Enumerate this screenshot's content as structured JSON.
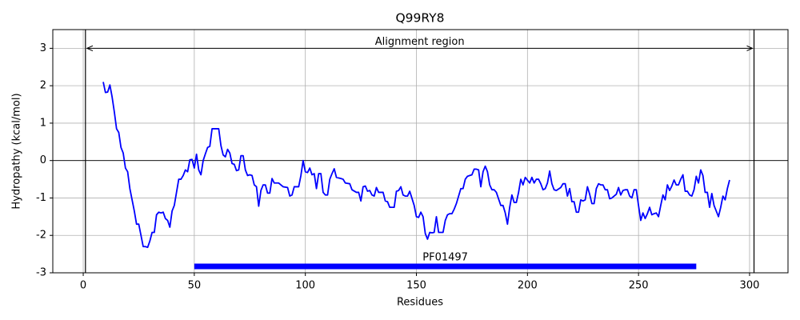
{
  "chart_data": {
    "type": "line",
    "title": "Q99RY8",
    "xlabel": "Residues",
    "ylabel": "Hydropathy (kcal/mol)",
    "x": [
      9,
      10,
      11,
      12,
      13,
      14,
      15,
      16,
      17,
      18,
      19,
      20,
      21,
      22,
      23,
      24,
      25,
      26,
      27,
      28,
      29,
      30,
      31,
      32,
      33,
      34,
      35,
      36,
      37,
      38,
      39,
      40,
      41,
      42,
      43,
      44,
      45,
      46,
      47,
      48,
      49,
      50,
      51,
      52,
      53,
      54,
      55,
      56,
      57,
      58,
      59,
      60,
      61,
      62,
      63,
      64,
      65,
      66,
      67,
      68,
      69,
      70,
      71,
      72,
      73,
      74,
      75,
      76,
      77,
      78,
      79,
      80,
      81,
      82,
      83,
      84,
      85,
      86,
      87,
      88,
      90,
      92,
      93,
      94,
      95,
      97,
      98,
      99,
      100,
      101,
      102,
      103,
      104,
      105,
      106,
      107,
      108,
      109,
      110,
      111,
      112,
      113,
      114,
      116,
      117,
      118,
      120,
      121,
      123,
      124,
      125,
      126,
      127,
      128,
      129,
      130,
      131,
      132,
      133,
      135,
      136,
      137,
      138,
      140,
      141,
      142,
      143,
      144,
      145,
      146,
      147,
      149,
      150,
      151,
      152,
      153,
      154,
      155,
      156,
      157,
      158,
      159,
      160,
      162,
      163,
      164,
      165,
      166,
      167,
      168,
      170,
      171,
      172,
      173,
      174,
      175,
      176,
      177,
      178,
      179,
      180,
      181,
      182,
      183,
      184,
      185,
      186,
      188,
      189,
      190,
      191,
      192,
      193,
      194,
      195,
      196,
      197,
      198,
      199,
      201,
      202,
      203,
      204,
      205,
      206,
      207,
      208,
      209,
      210,
      211,
      212,
      213,
      215,
      216,
      217,
      218,
      219,
      220,
      221,
      222,
      223,
      224,
      225,
      226,
      227,
      228,
      229,
      230,
      231,
      232,
      233,
      234,
      235,
      236,
      237,
      238,
      240,
      241,
      242,
      243,
      244,
      245,
      246,
      247,
      248,
      249,
      250,
      251,
      252,
      253,
      254,
      255,
      256,
      257,
      258,
      259,
      260,
      261,
      262,
      263,
      264,
      265,
      266,
      267,
      268,
      269,
      270,
      271,
      272,
      273,
      274,
      275,
      276,
      277,
      278,
      279,
      280,
      281,
      282,
      283,
      284,
      285,
      286,
      287,
      288,
      289,
      290,
      291
    ],
    "series": [
      {
        "name": "Hydropathy",
        "color": "#0000ff",
        "values": [
          2.1,
          1.82,
          1.83,
          2.02,
          1.7,
          1.3,
          0.85,
          0.75,
          0.35,
          0.2,
          -0.2,
          -0.3,
          -0.75,
          -1.05,
          -1.35,
          -1.7,
          -1.7,
          -2.0,
          -2.3,
          -2.3,
          -2.32,
          -2.15,
          -1.92,
          -1.92,
          -1.45,
          -1.38,
          -1.4,
          -1.38,
          -1.55,
          -1.6,
          -1.78,
          -1.35,
          -1.2,
          -0.85,
          -0.5,
          -0.5,
          -0.4,
          -0.25,
          -0.3,
          0.02,
          0.03,
          -0.2,
          0.17,
          -0.25,
          -0.38,
          0,
          0.18,
          0.35,
          0.38,
          0.85,
          0.85,
          0.85,
          0.85,
          0.4,
          0.15,
          0.1,
          0.3,
          0.2,
          -0.08,
          -0.1,
          -0.27,
          -0.25,
          0.13,
          0.13,
          -0.25,
          -0.4,
          -0.38,
          -0.4,
          -0.65,
          -0.7,
          -1.22,
          -0.8,
          -0.65,
          -0.65,
          -0.87,
          -0.87,
          -0.48,
          -0.6,
          -0.6,
          -0.6,
          -0.7,
          -0.72,
          -0.95,
          -0.92,
          -0.7,
          -0.7,
          -0.4,
          0,
          -0.3,
          -0.32,
          -0.2,
          -0.38,
          -0.35,
          -0.75,
          -0.35,
          -0.35,
          -0.85,
          -0.92,
          -0.92,
          -0.5,
          -0.35,
          -0.22,
          -0.45,
          -0.48,
          -0.5,
          -0.6,
          -0.62,
          -0.78,
          -0.85,
          -0.85,
          -1.08,
          -0.7,
          -0.68,
          -0.82,
          -0.8,
          -0.92,
          -0.95,
          -0.72,
          -0.85,
          -0.85,
          -1.08,
          -1.1,
          -1.25,
          -1.25,
          -0.82,
          -0.8,
          -0.7,
          -0.92,
          -0.95,
          -0.95,
          -0.82,
          -1.2,
          -1.5,
          -1.52,
          -1.38,
          -1.5,
          -1.95,
          -2.1,
          -1.92,
          -1.93,
          -1.92,
          -1.5,
          -1.92,
          -1.92,
          -1.6,
          -1.45,
          -1.42,
          -1.42,
          -1.3,
          -1.15,
          -0.75,
          -0.75,
          -0.5,
          -0.42,
          -0.4,
          -0.38,
          -0.23,
          -0.23,
          -0.25,
          -0.7,
          -0.3,
          -0.15,
          -0.3,
          -0.65,
          -0.78,
          -0.78,
          -0.85,
          -1.2,
          -1.2,
          -1.4,
          -1.7,
          -1.25,
          -0.92,
          -1.12,
          -1.12,
          -0.85,
          -0.5,
          -0.65,
          -0.45,
          -0.6,
          -0.45,
          -0.6,
          -0.5,
          -0.5,
          -0.62,
          -0.78,
          -0.75,
          -0.6,
          -0.28,
          -0.62,
          -0.78,
          -0.8,
          -0.72,
          -0.62,
          -0.62,
          -0.95,
          -0.75,
          -1.1,
          -1.1,
          -1.38,
          -1.38,
          -1.05,
          -1.08,
          -1.05,
          -0.7,
          -0.9,
          -1.15,
          -1.15,
          -0.75,
          -0.62,
          -0.65,
          -0.65,
          -0.78,
          -0.78,
          -1.02,
          -1.0,
          -0.9,
          -0.72,
          -0.92,
          -0.8,
          -0.78,
          -0.78,
          -0.95,
          -1.0,
          -0.78,
          -0.78,
          -1.2,
          -1.6,
          -1.4,
          -1.55,
          -1.42,
          -1.25,
          -1.45,
          -1.42,
          -1.4,
          -1.5,
          -1.2,
          -0.92,
          -1.05,
          -0.65,
          -0.8,
          -0.68,
          -0.52,
          -0.65,
          -0.65,
          -0.5,
          -0.38,
          -0.82,
          -0.82,
          -0.92,
          -0.95,
          -0.78,
          -0.42,
          -0.6,
          -0.25,
          -0.4,
          -0.85,
          -0.85,
          -1.25,
          -0.88,
          -1.2,
          -1.35,
          -1.5,
          -1.25,
          -0.95,
          -1.05,
          -0.75,
          -0.52
        ]
      }
    ],
    "xlim": [
      -13.7,
      317.3
    ],
    "ylim": [
      -3,
      3.5
    ],
    "xticks": [
      0,
      50,
      100,
      150,
      200,
      250,
      300
    ],
    "yticks": [
      -3,
      -2,
      -1,
      0,
      1,
      2,
      3
    ],
    "grid": true,
    "hline": 0,
    "alignment_region": {
      "label": "Alignment region",
      "start": 1,
      "end": 302,
      "y": 3
    },
    "domains": [
      {
        "name": "PF01497",
        "start": 50,
        "end": 276,
        "y": -2.83,
        "color": "#0000ff"
      }
    ]
  }
}
